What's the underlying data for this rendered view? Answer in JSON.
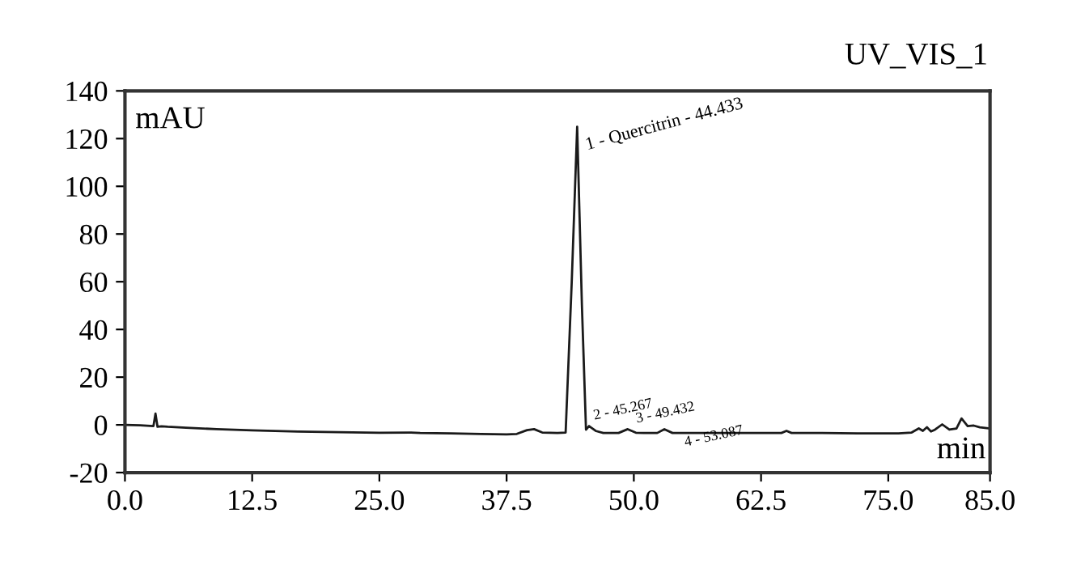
{
  "chart_data": {
    "type": "line",
    "title": "UV_VIS_1",
    "xlabel": "min",
    "ylabel": "mAU",
    "series": [
      {
        "color": "#1a1a1a",
        "x": [
          0,
          1.5,
          2.8,
          3.0,
          3.2,
          3.6,
          4.2,
          6,
          9,
          12.5,
          17,
          21,
          25,
          28,
          29,
          32,
          35,
          37.5,
          38.5,
          39.5,
          40.2,
          41,
          42.5,
          43.3,
          43.9,
          44.433,
          44.9,
          45.3,
          45.6,
          46.3,
          47,
          48.5,
          49.4,
          50.2,
          51,
          52.3,
          53.0,
          53.8,
          55,
          58,
          62,
          64.5,
          65,
          65.5,
          68,
          72,
          76,
          77.3,
          78,
          78.4,
          78.8,
          79.2,
          79.6,
          80.3,
          81,
          81.7,
          82.2,
          82.8,
          83.4,
          84,
          85
        ],
        "values": [
          0,
          -0.2,
          -0.5,
          4.7,
          -0.8,
          -0.6,
          -0.8,
          -1.2,
          -1.8,
          -2.3,
          -2.8,
          -3.1,
          -3.3,
          -3.2,
          -3.4,
          -3.6,
          -3.8,
          -4.0,
          -3.8,
          -2.2,
          -1.8,
          -3.2,
          -3.4,
          -3.2,
          60,
          125,
          50,
          -2.0,
          -0.5,
          -2.6,
          -3.4,
          -3.4,
          -1.8,
          -3.3,
          -3.4,
          -3.4,
          -1.8,
          -3.4,
          -3.4,
          -3.4,
          -3.4,
          -3.4,
          -2.5,
          -3.4,
          -3.4,
          -3.6,
          -3.6,
          -3.2,
          -1.5,
          -2.5,
          -1.0,
          -2.8,
          -2.0,
          0.2,
          -2.0,
          -1.5,
          2.7,
          -0.5,
          -0.3,
          -1.0,
          -1.5
        ]
      }
    ],
    "xlim": [
      0,
      85
    ],
    "ylim": [
      -20,
      140
    ],
    "xticks": [
      {
        "value": 0,
        "label": "0.0"
      },
      12.5,
      {
        "value": 25,
        "label": "25.0"
      },
      37.5,
      {
        "value": 50,
        "label": "50.0"
      },
      62.5,
      {
        "value": 75,
        "label": "75.0"
      },
      {
        "value": 85,
        "label": "85.0"
      }
    ],
    "yticks": [
      -20,
      0,
      20,
      40,
      60,
      80,
      100,
      120,
      140
    ],
    "grid": false,
    "legend": false,
    "marker": "none",
    "line_style": "solid",
    "annotations": [
      {
        "text": "1 - Quercitrin - 44.433",
        "x": 44.433,
        "y": 125
      },
      {
        "text": "2 - 45.267",
        "x": 45.267,
        "y": -0.5
      },
      {
        "text": "3 - 49.432",
        "x": 49.432,
        "y": -1.8
      },
      {
        "text": "4 - 53.087",
        "x": 53.087,
        "y": -1.8
      }
    ]
  }
}
